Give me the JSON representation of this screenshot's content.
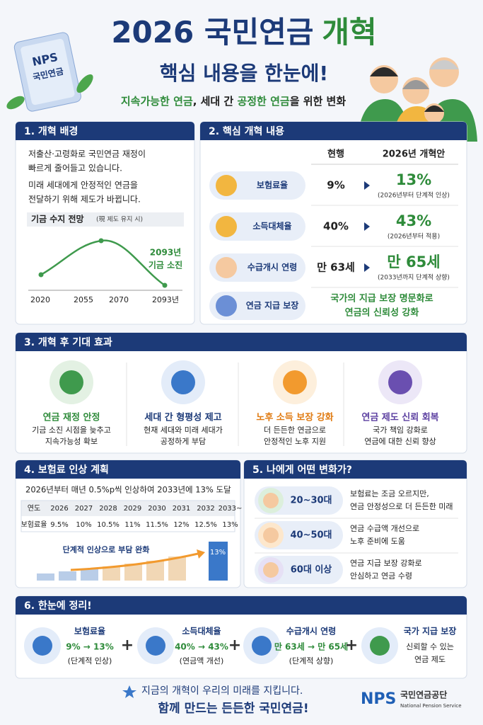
{
  "header": {
    "title_main": "2026 국민연금",
    "title_accent": "개혁",
    "subtitle": "핵심 내용을 한눈에!",
    "tagline": [
      "지속가능한 연금",
      ", 세대 간 ",
      "공정한 연금",
      "을 위한 변화"
    ],
    "badge": [
      "NPS",
      "국민연금"
    ]
  },
  "section1": {
    "title": "1. 개혁 배경",
    "text": [
      "저출산·고령화로 국민연금 재정이",
      "빠르게 줄어들고 있습니다.",
      "미래 세대에게 안정적인 연금을",
      "전달하기 위해 제도가 바뀝니다."
    ],
    "chart_title": "기금 수지 전망",
    "chart_note": "(現 제도 유지 시)",
    "annotation": [
      "2093년",
      "기금 소진"
    ],
    "x_labels": [
      "2020",
      "2055",
      "2070",
      "2093년"
    ]
  },
  "section2": {
    "title": "2. 핵심 개혁 내용",
    "columns": [
      "현행",
      "2026년 개혁안"
    ],
    "rows": [
      {
        "label": "보험료율",
        "current": "9%",
        "new": "13%",
        "note": "(2026년부터 단계적 인상)"
      },
      {
        "label": "소득대체율",
        "current": "40%",
        "new": "43%",
        "note": "(2026년부터 적용)"
      },
      {
        "label": "수급개시 연령",
        "current": "만 63세",
        "new": "만 65세",
        "note": "(2033년까지 단계적 상향)"
      },
      {
        "label": "연금 지급 보장",
        "text": [
          "국가의 지급 보장 명문화로",
          "연금의 신뢰성 강화"
        ]
      }
    ]
  },
  "section3": {
    "title": "3. 개혁 후 기대 효과",
    "items": [
      {
        "title": "연금 재정 안정",
        "text": [
          "기금 소진 시점을 늦추고",
          "지속가능성 확보"
        ]
      },
      {
        "title": "세대 간 형평성 제고",
        "text": [
          "현재 세대와 미래 세대가",
          "공정하게 부담"
        ]
      },
      {
        "title": "노후 소득 보장 강화",
        "text": [
          "더 든든한 연금으로",
          "안정적인 노후 지원"
        ]
      },
      {
        "title": "연금 제도 신뢰 회복",
        "text": [
          "국가 책임 강화로",
          "연금에 대한 신뢰 향상"
        ]
      }
    ]
  },
  "section4": {
    "title": "4. 보험료 인상 계획",
    "summary": "2026년부터 매년 0.5%p씩 인상하여 2033년에 13% 도달",
    "table": {
      "header": [
        "연도",
        "2026",
        "2027",
        "2028",
        "2029",
        "2030",
        "2031",
        "2032",
        "2033~"
      ],
      "row": [
        "보험료율",
        "9.5%",
        "10%",
        "10.5%",
        "11%",
        "11.5%",
        "12%",
        "12.5%",
        "13%"
      ]
    },
    "chart_label": "단계적 인상으로 부담 완화"
  },
  "section5": {
    "title": "5. 나에게 어떤 변화가?",
    "items": [
      {
        "age": "20~30대",
        "text": [
          "보험료는 조금 오르지만,",
          "연금 안정성으로 더 든든한 미래"
        ]
      },
      {
        "age": "40~50대",
        "text": [
          "연금 수급액 개선으로",
          "노후 준비에 도움"
        ]
      },
      {
        "age": "60대 이상",
        "text": [
          "연금 지급 보장 강화로",
          "안심하고 연금 수령"
        ]
      }
    ]
  },
  "section6": {
    "title": "6. 한눈에 정리!",
    "items": [
      {
        "title": "보험료율",
        "value": "9% → 13%",
        "note": "(단계적 인상)"
      },
      {
        "title": "소득대체율",
        "value": "40% → 43%",
        "note": "(연금액 개선)"
      },
      {
        "title": "수급개시 연령",
        "value": "만 63세 → 만 65세",
        "note": "(단계적 상향)"
      },
      {
        "title": "국가 지급 보장",
        "text": [
          "신뢰할 수 있는",
          "연금 제도"
        ]
      }
    ]
  },
  "footer": {
    "line1": "지금의 개혁이 우리의 미래를 지킵니다.",
    "line2": "함께 만드는 든든한 국민연금!",
    "logo": "NPS",
    "org": "국민연금공단",
    "org_en": "National Pension Service"
  }
}
